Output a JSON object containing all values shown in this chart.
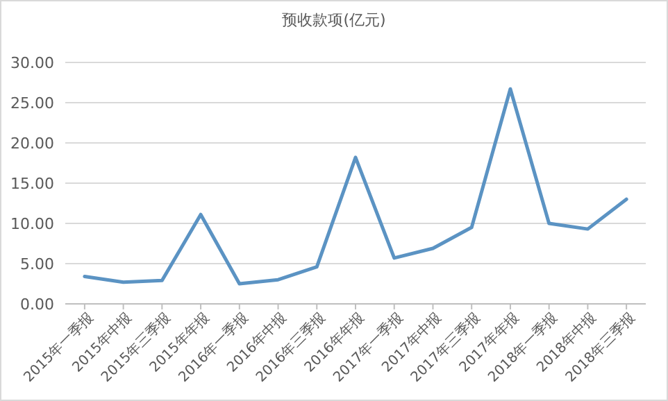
{
  "chart_data": {
    "type": "line",
    "title": "预收款项(亿元)",
    "categories": [
      "2015年一季报",
      "2015年中报",
      "2015年三季报",
      "2015年年报",
      "2016年一季报",
      "2016年中报",
      "2016年三季报",
      "2016年年报",
      "2017年一季报",
      "2017年中报",
      "2017年三季报",
      "2017年年报",
      "2018年一季报",
      "2018年中报",
      "2018年三季报"
    ],
    "series": [
      {
        "color": "#5b93c3",
        "values": [
          3.4,
          2.7,
          2.9,
          11.1,
          2.5,
          3.0,
          4.6,
          18.2,
          5.7,
          6.9,
          9.5,
          26.7,
          10.0,
          9.3,
          13.0
        ]
      }
    ],
    "ylim": [
      0,
      30
    ],
    "yticks": [
      {
        "value": 0,
        "label": "0.00"
      },
      {
        "value": 5,
        "label": "5.00"
      },
      {
        "value": 10,
        "label": "10.00"
      },
      {
        "value": 15,
        "label": "15.00"
      },
      {
        "value": 20,
        "label": "20.00"
      },
      {
        "value": 25,
        "label": "25.00"
      },
      {
        "value": 30,
        "label": "30.00"
      }
    ],
    "grid": "y",
    "marker": "none",
    "line_style": "solid"
  }
}
